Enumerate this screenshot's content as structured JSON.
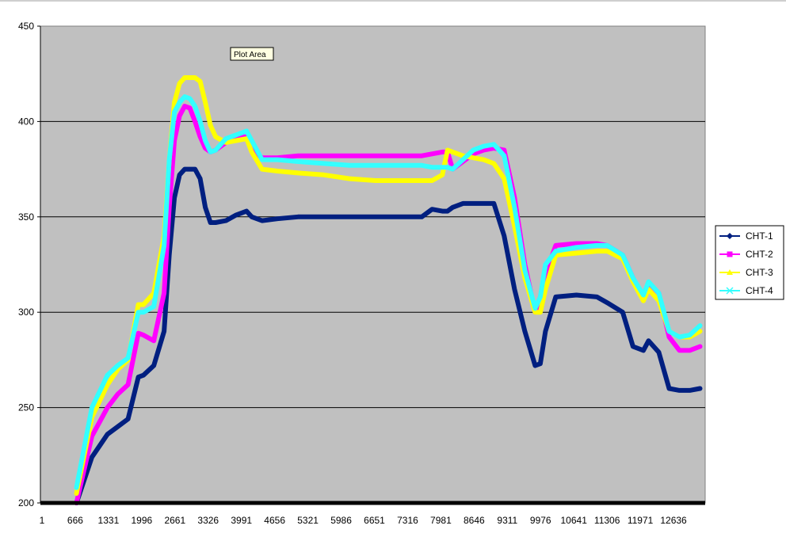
{
  "chart_data": {
    "type": "line",
    "ylim": [
      200,
      450
    ],
    "yticks": [
      200,
      250,
      300,
      350,
      400,
      450
    ],
    "x_tick_labels": [
      "1",
      "666",
      "1331",
      "1996",
      "2661",
      "3326",
      "3991",
      "4656",
      "5321",
      "5986",
      "6651",
      "7316",
      "7981",
      "8646",
      "9311",
      "9976",
      "10641",
      "11306",
      "11971",
      "12636"
    ],
    "x": [
      0,
      500,
      700,
      1000,
      1300,
      1500,
      1700,
      1900,
      2000,
      2200,
      2400,
      2500,
      2600,
      2700,
      2800,
      2900,
      3000,
      3100,
      3200,
      3300,
      3400,
      3600,
      3800,
      4000,
      4100,
      4300,
      4600,
      5000,
      5500,
      6000,
      6500,
      7000,
      7400,
      7600,
      7800,
      7900,
      8000,
      8200,
      8400,
      8600,
      8800,
      9000,
      9200,
      9400,
      9600,
      9700,
      9800,
      10000,
      10400,
      10800,
      11000,
      11300,
      11500,
      11700,
      11800,
      12000,
      12200,
      12400,
      12600,
      12800
    ],
    "series": [
      {
        "name": "CHT-1",
        "color": "#001f80",
        "marker": "diamond",
        "values": [
          null,
          null,
          200,
          224,
          236,
          240,
          244,
          266,
          267,
          272,
          290,
          330,
          360,
          372,
          375,
          375,
          375,
          370,
          355,
          347,
          347,
          348,
          351,
          353,
          350,
          348,
          349,
          350,
          350,
          350,
          350,
          350,
          350,
          354,
          353,
          353,
          355,
          357,
          357,
          357,
          357,
          340,
          312,
          290,
          272,
          273,
          290,
          308,
          309,
          308,
          305,
          300,
          282,
          280,
          285,
          279,
          260,
          259,
          259,
          260
        ]
      },
      {
        "name": "CHT-2",
        "color": "#ff00ff",
        "marker": "square",
        "values": [
          null,
          null,
          200,
          235,
          250,
          257,
          262,
          289,
          288,
          285,
          310,
          355,
          390,
          403,
          408,
          407,
          400,
          392,
          386,
          384,
          385,
          389,
          392,
          392,
          385,
          381,
          381,
          382,
          382,
          382,
          382,
          382,
          382,
          383,
          384,
          384,
          375,
          379,
          383,
          385,
          386,
          385,
          360,
          325,
          300,
          308,
          320,
          335,
          336,
          336,
          335,
          330,
          318,
          308,
          315,
          310,
          287,
          280,
          280,
          282
        ]
      },
      {
        "name": "CHT-3",
        "color": "#ffff00",
        "marker": "triangle",
        "values": [
          null,
          null,
          205,
          245,
          262,
          270,
          275,
          304,
          304,
          310,
          340,
          380,
          410,
          420,
          423,
          423,
          423,
          421,
          410,
          398,
          392,
          389,
          390,
          391,
          384,
          375,
          374,
          373,
          372,
          370,
          369,
          369,
          369,
          369,
          372,
          385,
          384,
          382,
          381,
          380,
          378,
          370,
          345,
          318,
          300,
          300,
          312,
          330,
          331,
          332,
          332,
          328,
          316,
          306,
          312,
          306,
          290,
          287,
          287,
          290
        ]
      },
      {
        "name": "CHT-4",
        "color": "#33ffff",
        "marker": "x",
        "values": [
          null,
          null,
          208,
          250,
          267,
          272,
          276,
          300,
          300,
          303,
          335,
          380,
          405,
          410,
          413,
          412,
          408,
          400,
          390,
          384,
          385,
          391,
          393,
          395,
          390,
          380,
          380,
          379,
          378,
          377,
          377,
          377,
          377,
          376,
          376,
          376,
          375,
          380,
          385,
          387,
          388,
          382,
          355,
          322,
          302,
          308,
          325,
          332,
          334,
          335,
          335,
          330,
          318,
          309,
          316,
          310,
          290,
          287,
          288,
          293
        ]
      }
    ],
    "legend_position": "right",
    "grid": "horizontal",
    "tooltip": "Plot Area"
  }
}
